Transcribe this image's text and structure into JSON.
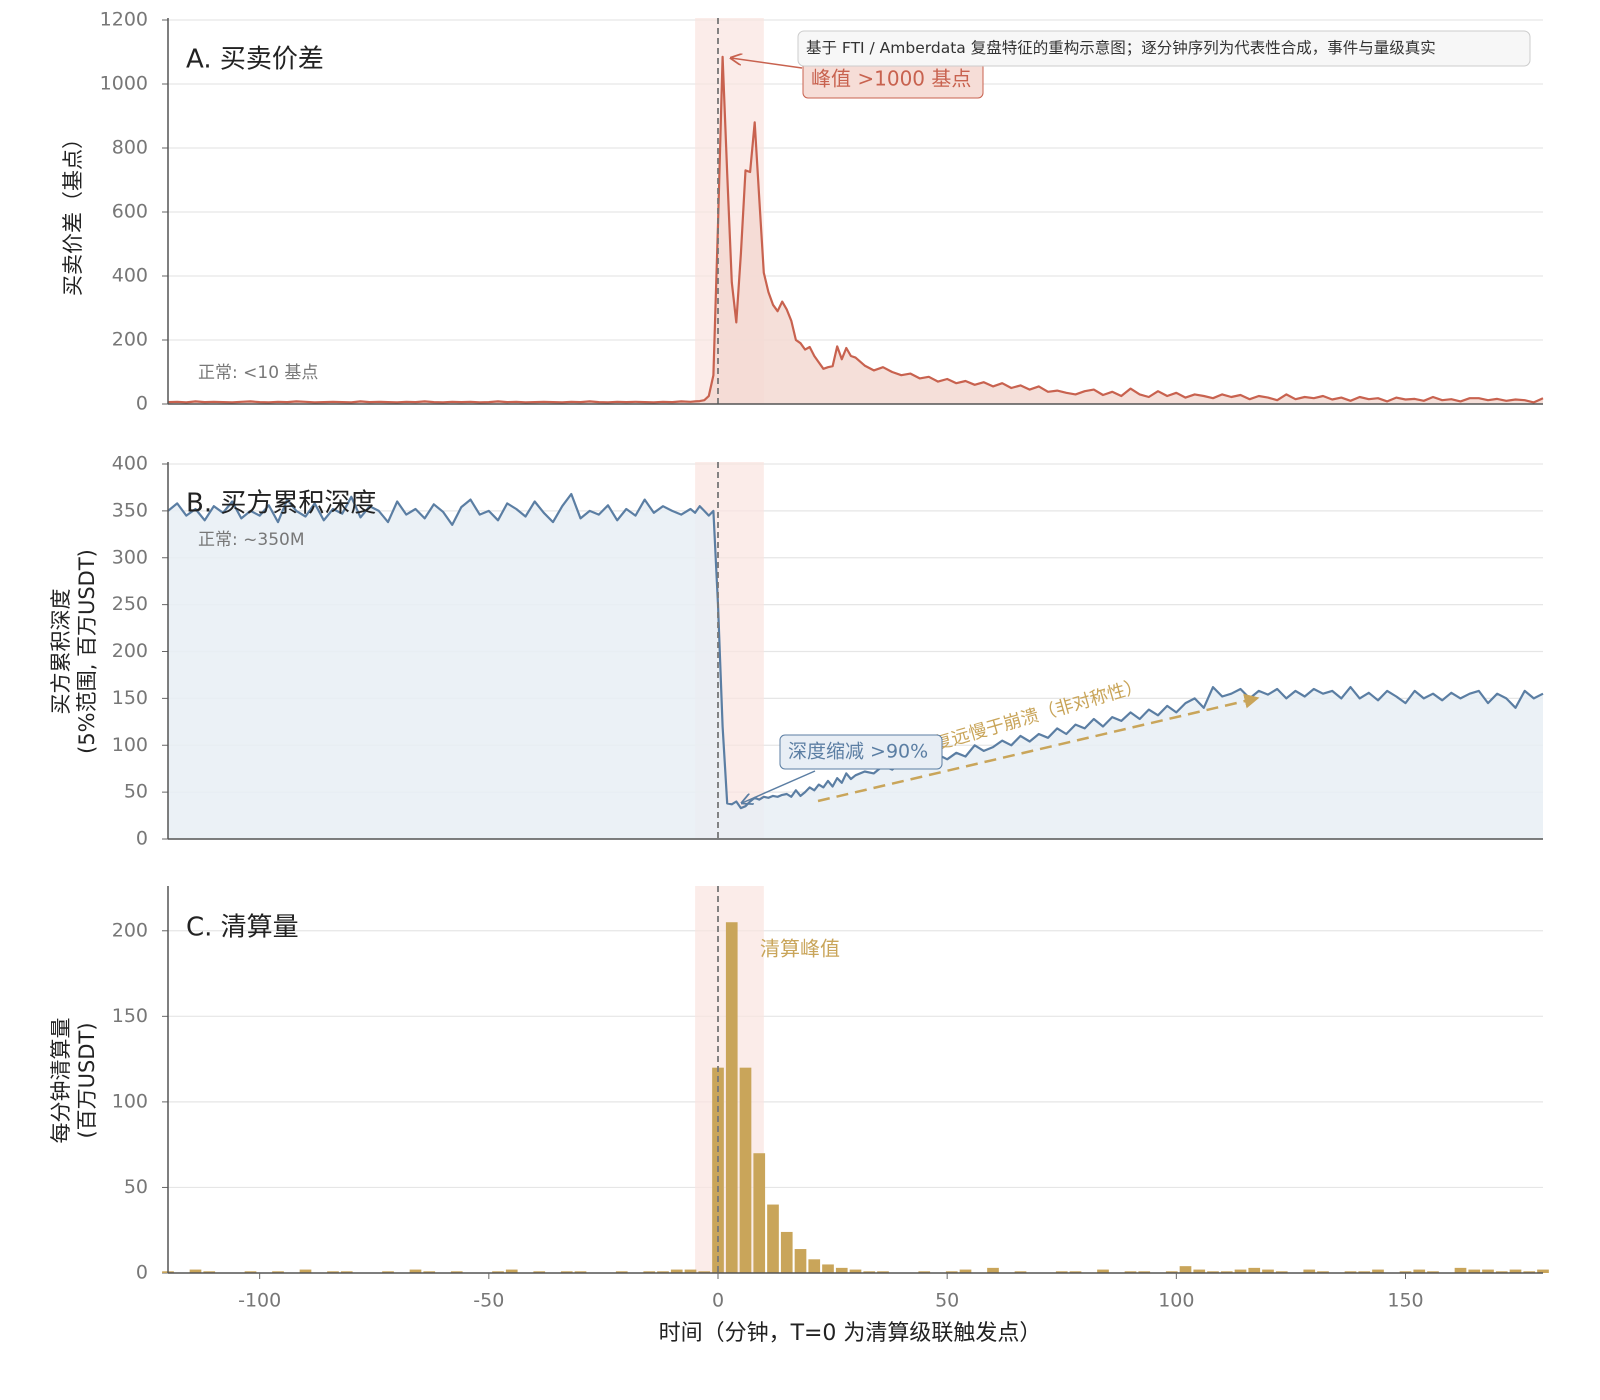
{
  "chart_data": [
    {
      "type": "line",
      "title": "A. 买卖价差",
      "ylabel": "买卖价差（基点）",
      "color": "#c8624f",
      "fill": "#f3d9d2",
      "normal_note": "正常: <10 基点",
      "peak_label": "峰值 >1000 基点",
      "source_note": "基于 FTI / Amberdata 复盘特征的重构示意图；逐分钟序列为代表性合成，事件与量级真实",
      "xlim": [
        -120,
        180
      ],
      "ylim": [
        0,
        1200
      ],
      "yticks": [
        0,
        200,
        400,
        600,
        800,
        1000,
        1200
      ],
      "grid": true,
      "event_x": 0,
      "shade": [
        -5,
        10
      ],
      "x": [
        -120,
        -118,
        -116,
        -114,
        -112,
        -110,
        -108,
        -106,
        -104,
        -102,
        -100,
        -98,
        -96,
        -94,
        -92,
        -90,
        -88,
        -86,
        -84,
        -82,
        -80,
        -78,
        -76,
        -74,
        -72,
        -70,
        -68,
        -66,
        -64,
        -62,
        -60,
        -58,
        -56,
        -54,
        -52,
        -50,
        -48,
        -46,
        -44,
        -42,
        -40,
        -38,
        -36,
        -34,
        -32,
        -30,
        -28,
        -26,
        -24,
        -22,
        -20,
        -18,
        -16,
        -14,
        -12,
        -10,
        -8,
        -6,
        -5,
        -4,
        -3,
        -2,
        -1,
        0,
        1,
        2,
        3,
        4,
        5,
        6,
        7,
        8,
        9,
        10,
        11,
        12,
        13,
        14,
        15,
        16,
        17,
        18,
        19,
        20,
        21,
        22,
        23,
        24,
        25,
        26,
        27,
        28,
        29,
        30,
        32,
        34,
        36,
        38,
        40,
        42,
        44,
        46,
        48,
        50,
        52,
        54,
        56,
        58,
        60,
        62,
        64,
        66,
        68,
        70,
        72,
        74,
        76,
        78,
        80,
        82,
        84,
        86,
        88,
        90,
        92,
        94,
        96,
        98,
        100,
        102,
        104,
        106,
        108,
        110,
        112,
        114,
        116,
        118,
        120,
        122,
        124,
        126,
        128,
        130,
        132,
        134,
        136,
        138,
        140,
        142,
        144,
        146,
        148,
        150,
        152,
        154,
        156,
        158,
        160,
        162,
        164,
        166,
        168,
        170,
        172,
        174,
        176,
        178,
        180
      ],
      "values": [
        6,
        7,
        5,
        8,
        6,
        7,
        6,
        5,
        7,
        8,
        6,
        5,
        7,
        6,
        8,
        7,
        5,
        6,
        7,
        6,
        5,
        8,
        6,
        7,
        6,
        5,
        7,
        6,
        8,
        6,
        5,
        7,
        6,
        7,
        5,
        6,
        8,
        6,
        7,
        5,
        6,
        7,
        6,
        5,
        7,
        6,
        8,
        6,
        5,
        7,
        6,
        7,
        6,
        5,
        7,
        6,
        8,
        7,
        8,
        9,
        12,
        25,
        90,
        560,
        1085,
        720,
        380,
        255,
        470,
        730,
        725,
        880,
        640,
        410,
        350,
        310,
        290,
        320,
        295,
        260,
        200,
        190,
        170,
        178,
        150,
        130,
        110,
        115,
        118,
        180,
        140,
        175,
        150,
        145,
        120,
        105,
        115,
        100,
        90,
        95,
        80,
        85,
        70,
        78,
        65,
        72,
        60,
        68,
        55,
        65,
        50,
        58,
        45,
        55,
        38,
        42,
        35,
        30,
        40,
        45,
        28,
        38,
        25,
        48,
        30,
        22,
        40,
        25,
        35,
        20,
        30,
        25,
        18,
        30,
        22,
        28,
        15,
        25,
        20,
        12,
        30,
        15,
        22,
        18,
        25,
        14,
        20,
        10,
        22,
        15,
        18,
        8,
        20,
        14,
        16,
        10,
        22,
        12,
        15,
        8,
        18,
        18,
        12,
        16,
        10,
        14,
        12,
        5,
        18
      ]
    },
    {
      "type": "line",
      "title": "B. 买方累积深度",
      "ylabel": [
        "买方累积深度",
        "(5%范围, 百万USDT)"
      ],
      "color": "#5b7ea3",
      "fill": "#e8eef5",
      "normal_note": "正常: ~350M",
      "drop_label": "深度缩减 >90%",
      "recovery_label": "恢复远慢于崩溃（非对称性）",
      "recovery_color": "#c9a55a",
      "xlim": [
        -120,
        180
      ],
      "ylim": [
        0,
        400
      ],
      "yticks": [
        0,
        50,
        100,
        150,
        200,
        250,
        300,
        350,
        400
      ],
      "grid": true,
      "event_x": 0,
      "shade": [
        -5,
        10
      ],
      "x": [
        -120,
        -118,
        -116,
        -114,
        -112,
        -110,
        -108,
        -106,
        -104,
        -102,
        -100,
        -98,
        -96,
        -94,
        -92,
        -90,
        -88,
        -86,
        -84,
        -82,
        -80,
        -78,
        -76,
        -74,
        -72,
        -70,
        -68,
        -66,
        -64,
        -62,
        -60,
        -58,
        -56,
        -54,
        -52,
        -50,
        -48,
        -46,
        -44,
        -42,
        -40,
        -38,
        -36,
        -34,
        -32,
        -30,
        -28,
        -26,
        -24,
        -22,
        -20,
        -18,
        -16,
        -14,
        -12,
        -10,
        -8,
        -6,
        -5,
        -4,
        -3,
        -2,
        -1,
        0,
        1,
        2,
        3,
        4,
        5,
        6,
        7,
        8,
        9,
        10,
        11,
        12,
        13,
        14,
        15,
        16,
        17,
        18,
        19,
        20,
        21,
        22,
        23,
        24,
        25,
        26,
        27,
        28,
        29,
        30,
        32,
        34,
        36,
        38,
        40,
        42,
        44,
        46,
        48,
        50,
        52,
        54,
        56,
        58,
        60,
        62,
        64,
        66,
        68,
        70,
        72,
        74,
        76,
        78,
        80,
        82,
        84,
        86,
        88,
        90,
        92,
        94,
        96,
        98,
        100,
        102,
        104,
        106,
        108,
        110,
        112,
        114,
        116,
        118,
        120,
        122,
        124,
        126,
        128,
        130,
        132,
        134,
        136,
        138,
        140,
        142,
        144,
        146,
        148,
        150,
        152,
        154,
        156,
        158,
        160,
        162,
        164,
        166,
        168,
        170,
        172,
        174,
        176,
        178,
        180
      ],
      "values": [
        350,
        358,
        345,
        352,
        340,
        355,
        348,
        360,
        342,
        350,
        345,
        356,
        338,
        362,
        350,
        344,
        358,
        340,
        352,
        347,
        365,
        343,
        355,
        350,
        338,
        360,
        346,
        352,
        342,
        357,
        349,
        335,
        354,
        362,
        346,
        350,
        340,
        358,
        352,
        344,
        360,
        348,
        338,
        355,
        368,
        342,
        350,
        346,
        356,
        340,
        352,
        345,
        362,
        348,
        355,
        350,
        346,
        352,
        348,
        355,
        350,
        345,
        350,
        250,
        120,
        38,
        37,
        40,
        33,
        35,
        40,
        44,
        42,
        45,
        44,
        46,
        45,
        47,
        48,
        45,
        52,
        46,
        50,
        55,
        52,
        58,
        55,
        62,
        56,
        65,
        60,
        70,
        64,
        68,
        72,
        70,
        78,
        74,
        82,
        78,
        86,
        80,
        90,
        85,
        92,
        88,
        100,
        94,
        98,
        105,
        100,
        110,
        104,
        112,
        108,
        118,
        112,
        122,
        118,
        128,
        120,
        130,
        126,
        135,
        128,
        138,
        132,
        142,
        135,
        145,
        150,
        140,
        162,
        152,
        155,
        160,
        150,
        158,
        154,
        160,
        150,
        158,
        152,
        160,
        155,
        158,
        150,
        162,
        150,
        156,
        148,
        158,
        152,
        145,
        158,
        150,
        155,
        148,
        156,
        150,
        155,
        158,
        145,
        155,
        150,
        140,
        158,
        150,
        155
      ]
    },
    {
      "type": "bar",
      "title": "C. 清算量",
      "ylabel": [
        "每分钟清算量",
        "(百万USDT)"
      ],
      "color": "#c9a55a",
      "peak_label": "清算峰值",
      "xlabel": "时间（分钟，T=0 为清算级联触发点）",
      "xlim": [
        -120,
        180
      ],
      "xticks": [
        -100,
        -50,
        0,
        50,
        100,
        150
      ],
      "ylim": [
        0,
        225
      ],
      "yticks": [
        0,
        50,
        100,
        150,
        200
      ],
      "grid": true,
      "event_x": 0,
      "shade": [
        -5,
        10
      ],
      "x": [
        -120,
        -117,
        -114,
        -111,
        -108,
        -105,
        -102,
        -99,
        -96,
        -93,
        -90,
        -87,
        -84,
        -81,
        -78,
        -75,
        -72,
        -69,
        -66,
        -63,
        -60,
        -57,
        -54,
        -51,
        -48,
        -45,
        -42,
        -39,
        -36,
        -33,
        -30,
        -27,
        -24,
        -21,
        -18,
        -15,
        -12,
        -9,
        -6,
        -3,
        0,
        3,
        6,
        9,
        12,
        15,
        18,
        21,
        24,
        27,
        30,
        33,
        36,
        39,
        42,
        45,
        48,
        51,
        54,
        57,
        60,
        63,
        66,
        69,
        72,
        75,
        78,
        81,
        84,
        87,
        90,
        93,
        96,
        99,
        102,
        105,
        108,
        111,
        114,
        117,
        120,
        123,
        126,
        129,
        132,
        135,
        138,
        141,
        144,
        147,
        150,
        153,
        156,
        159,
        162,
        165,
        168,
        171,
        174,
        177,
        180
      ],
      "values": [
        1,
        0,
        2,
        1,
        0,
        0,
        1,
        0,
        1,
        0,
        2,
        0,
        1,
        1,
        0,
        0,
        1,
        0,
        2,
        1,
        0,
        1,
        0,
        0,
        1,
        2,
        0,
        1,
        0,
        1,
        1,
        0,
        0,
        1,
        0,
        1,
        1,
        2,
        2,
        1,
        120,
        205,
        120,
        70,
        40,
        24,
        14,
        8,
        5,
        3,
        2,
        1,
        1,
        0,
        0,
        1,
        0,
        1,
        2,
        0,
        3,
        0,
        1,
        0,
        0,
        1,
        1,
        0,
        2,
        0,
        1,
        1,
        0,
        1,
        4,
        2,
        1,
        1,
        2,
        3,
        2,
        1,
        0,
        2,
        1,
        0,
        1,
        1,
        2,
        0,
        1,
        2,
        1,
        0,
        3,
        2,
        2,
        1,
        2,
        1,
        2
      ]
    }
  ]
}
